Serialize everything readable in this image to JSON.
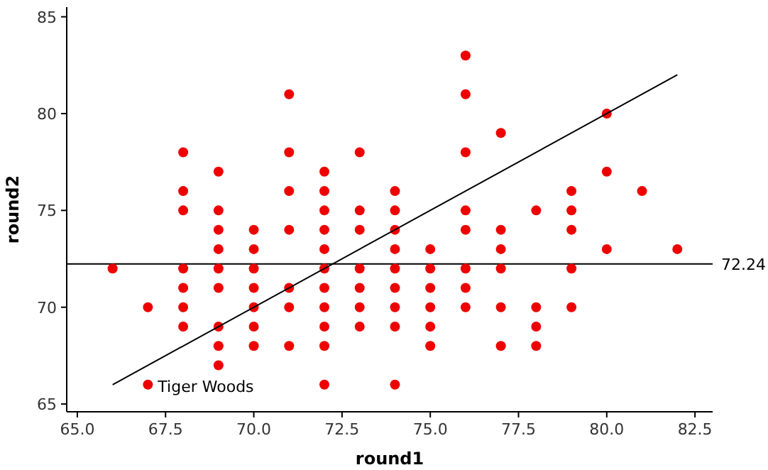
{
  "chart_data": {
    "type": "scatter",
    "xlabel": "round1",
    "ylabel": "round2",
    "xlim": [
      64.7,
      83
    ],
    "ylim": [
      64.6,
      85.5
    ],
    "xticks": [
      {
        "value": 65,
        "label": "65.0"
      },
      {
        "value": 67.5,
        "label": "67.5"
      },
      {
        "value": 70,
        "label": "70.0"
      },
      {
        "value": 72.5,
        "label": "72.5"
      },
      {
        "value": 75,
        "label": "75.0"
      },
      {
        "value": 77.5,
        "label": "77.5"
      },
      {
        "value": 80,
        "label": "80.0"
      },
      {
        "value": 82.5,
        "label": "82.5"
      }
    ],
    "yticks": [
      65,
      70,
      75,
      80,
      85
    ],
    "grid": false,
    "marker": "circle",
    "series": [
      {
        "color": "#ee0000",
        "x": [
          66,
          67,
          67,
          68,
          68,
          68,
          68,
          68,
          68,
          68,
          69,
          69,
          69,
          69,
          69,
          69,
          69,
          69,
          69,
          70,
          70,
          70,
          70,
          70,
          70,
          70,
          71,
          71,
          71,
          71,
          71,
          71,
          71,
          72,
          72,
          72,
          72,
          72,
          72,
          72,
          72,
          72,
          72,
          72,
          73,
          73,
          73,
          73,
          73,
          73,
          73,
          74,
          74,
          74,
          74,
          74,
          74,
          74,
          74,
          74,
          75,
          75,
          75,
          75,
          75,
          75,
          76,
          76,
          76,
          76,
          76,
          76,
          76,
          76,
          77,
          77,
          77,
          77,
          77,
          77,
          78,
          78,
          78,
          78,
          79,
          79,
          79,
          79,
          79,
          80,
          80,
          80,
          81,
          82
        ],
        "values": [
          72,
          70,
          66,
          78,
          76,
          75,
          72,
          71,
          70,
          69,
          77,
          75,
          74,
          73,
          72,
          71,
          69,
          68,
          67,
          74,
          73,
          72,
          71,
          70,
          69,
          68,
          81,
          78,
          76,
          74,
          71,
          70,
          68,
          77,
          76,
          75,
          74,
          73,
          72,
          71,
          70,
          69,
          68,
          66,
          78,
          75,
          74,
          72,
          71,
          70,
          69,
          76,
          75,
          74,
          73,
          72,
          71,
          70,
          69,
          66,
          73,
          72,
          71,
          70,
          69,
          68,
          83,
          81,
          78,
          75,
          74,
          72,
          71,
          70,
          79,
          74,
          73,
          72,
          70,
          68,
          75,
          70,
          69,
          68,
          76,
          75,
          74,
          72,
          70,
          80,
          77,
          73,
          76,
          73
        ]
      },
      {
        "type": "line",
        "color": "#000000",
        "marker": "none",
        "line_style": "solid",
        "x": [
          66,
          82
        ],
        "values": [
          66,
          82
        ]
      }
    ],
    "ref_lines": [
      {
        "axis": "y",
        "value": 72.24,
        "label": "72.24",
        "color": "#000000"
      }
    ],
    "annotations": [
      {
        "text": "Tiger Woods",
        "x": 67,
        "y": 66
      }
    ]
  }
}
